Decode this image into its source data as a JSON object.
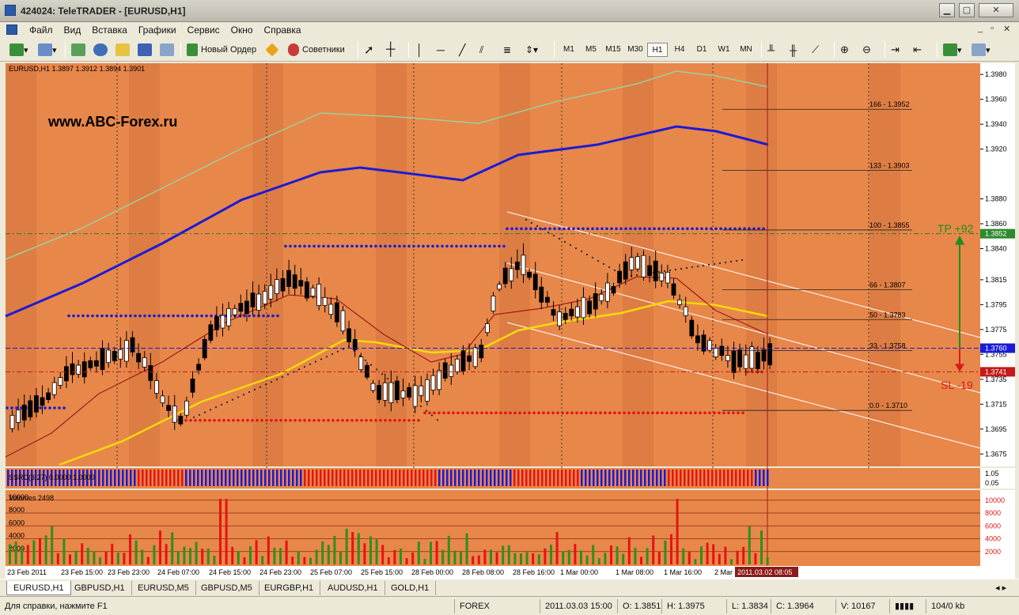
{
  "window": {
    "title": "424024: TeleTRADER - [EURUSD,H1]"
  },
  "menu": [
    "Файл",
    "Вид",
    "Вставка",
    "Графики",
    "Сервис",
    "Окно",
    "Справка"
  ],
  "toolbar": {
    "new_order_label": "Новый Ордер",
    "advisors_label": "Советники",
    "timeframes": [
      "M1",
      "M5",
      "M15",
      "M30",
      "H1",
      "H4",
      "D1",
      "W1",
      "MN"
    ],
    "active_timeframe": "H1"
  },
  "chart": {
    "symbol_header": "EURUSD,H1  1.3897 1.3912 1.3894 1.3901",
    "watermark": "www.ABC-Forex.ru",
    "price_scale": [
      "1.3980",
      "1.3960",
      "1.3940",
      "1.3920",
      "1.3880",
      "1.3860",
      "1.3840",
      "1.3815",
      "1.3795",
      "1.3775",
      "1.3755",
      "1.3735",
      "1.3715",
      "1.3695",
      "1.3675"
    ],
    "price_ticks": [
      1.398,
      1.396,
      1.394,
      1.392,
      1.388,
      1.386,
      1.384,
      1.3815,
      1.3795,
      1.3775,
      1.3755,
      1.3735,
      1.3715,
      1.3695,
      1.3675
    ],
    "price_range": [
      1.3665,
      1.3989
    ],
    "current_price": "1.3760",
    "tp_price": "1.3852",
    "sl_price": "1.3741",
    "tp_label": "TP +92",
    "sl_label": "SL -19",
    "fibo_levels": [
      {
        "label": "166 - 1.3952",
        "price": 1.3952
      },
      {
        "label": "133 - 1.3903",
        "price": 1.3903
      },
      {
        "label": "100 - 1.3855",
        "price": 1.3855
      },
      {
        "label": "66 - 1.3807",
        "price": 1.3807
      },
      {
        "label": "50 - 1.3783",
        "price": 1.3783
      },
      {
        "label": "33 - 1.3758",
        "price": 1.3758
      },
      {
        "label": "0.0 - 1.3710",
        "price": 1.371
      }
    ],
    "time_labels": [
      "23 Feb 2011",
      "23 Feb 15:00",
      "23 Feb 23:00",
      "24 Feb 07:00",
      "24 Feb 15:00",
      "24 Feb 23:00",
      "25 Feb 07:00",
      "25 Feb 15:00",
      "28 Feb 00:00",
      "28 Feb 08:00",
      "28 Feb 16:00",
      "1 Mar 00:00",
      "1 Mar 08:00",
      "1 Mar 16:00",
      "2 Mar"
    ],
    "time_cursor": "2011.03.02 08:05",
    "indicator_label": "SSRC(3,27) 0.0000 1.0000",
    "indicator_scale": [
      "1.05",
      "0.05"
    ],
    "volumes_label": "Volumes 2498",
    "volume_scale": [
      "10000",
      "8000",
      "6000",
      "4000",
      "2000"
    ],
    "volume_ticks": [
      10000,
      8000,
      6000,
      4000,
      2000
    ],
    "volume_max": 11200
  },
  "tabs": [
    "EURUSD,H1",
    "GBPUSD,H1",
    "EURUSD,M5",
    "GBPUSD,M5",
    "EURGBP,H1",
    "AUDUSD,H1",
    "GOLD,H1"
  ],
  "active_tab": "EURUSD,H1",
  "status": {
    "help": "Для справки, нажмите F1",
    "profile": "FOREX",
    "datetime": "2011.03.03 15:00",
    "open": "O: 1.3851",
    "high": "H: 1.3975",
    "low": "L: 1.3834",
    "close": "C: 1.3964",
    "volume": "V: 10167",
    "traffic": "104/0 kb"
  },
  "colors": {
    "chart_bg": "#e8874a",
    "band_dark": "#dd7d43",
    "sma_blue": "#1b1bd6",
    "sma_yellow": "#f5d90a",
    "ma_red": "#a11a1a",
    "upper_band": "#9ccf9a",
    "dots_blue": "#1b1bd6",
    "dots_red": "#e51313",
    "tp_green": "#1e8f1e",
    "sl_red": "#d81c1c",
    "vol_green": "#2f8f1c",
    "vol_red": "#e51313"
  }
}
